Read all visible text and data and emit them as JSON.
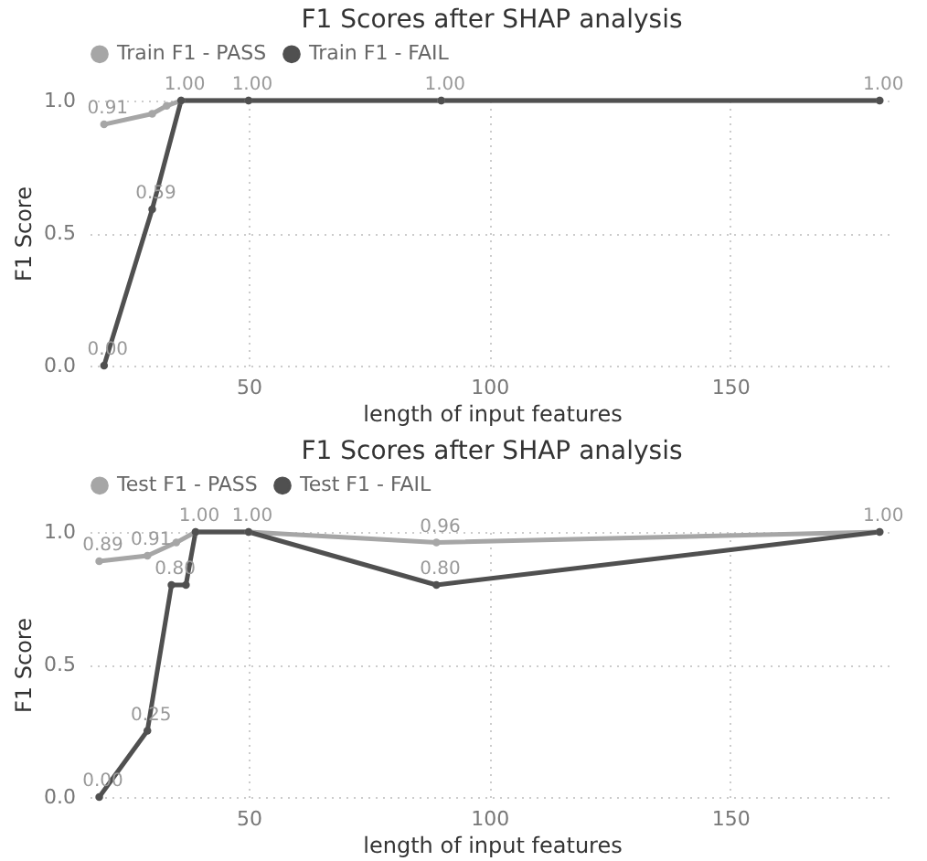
{
  "chart_data": [
    {
      "type": "line",
      "title": "F1 Scores after SHAP analysis",
      "xlabel": "length of input features",
      "ylabel": "F1 Score",
      "xlim": [
        17,
        184
      ],
      "xticks": [
        50,
        100,
        150
      ],
      "ylim": [
        0,
        1
      ],
      "yticks": [
        {
          "value": 0,
          "label": "0.0"
        },
        {
          "value": 0.5,
          "label": "0.5"
        },
        {
          "value": 1,
          "label": "1.0"
        }
      ],
      "grid": true,
      "legend": "top",
      "marker": "circle",
      "series": [
        {
          "name": "Train F1 - PASS",
          "color": "#a6a6a6",
          "x": [
            20,
            30,
            33,
            36,
            50,
            90,
            181
          ],
          "values": [
            0.91,
            0.95,
            0.98,
            1.0,
            1.0,
            1.0,
            1.0
          ],
          "value_labels": [
            "0.91",
            null,
            null,
            "1.00",
            null,
            null,
            null
          ]
        },
        {
          "name": "Train F1 - FAIL",
          "color": "#505050",
          "x": [
            20,
            30,
            36,
            50,
            90,
            181
          ],
          "values": [
            0.0,
            0.59,
            1.0,
            1.0,
            1.0,
            1.0
          ],
          "value_labels": [
            "0.00",
            "0.59",
            null,
            "1.00",
            "1.00",
            "1.00"
          ]
        }
      ]
    },
    {
      "type": "line",
      "title": "F1 Scores after SHAP analysis",
      "xlabel": "length of input features",
      "ylabel": "F1 Score",
      "xlim": [
        17,
        184
      ],
      "xticks": [
        50,
        100,
        150
      ],
      "ylim": [
        0,
        1
      ],
      "yticks": [
        {
          "value": 0,
          "label": "0.0"
        },
        {
          "value": 0.5,
          "label": "0.5"
        },
        {
          "value": 1,
          "label": "1.0"
        }
      ],
      "grid": true,
      "legend": "top",
      "marker": "circle",
      "series": [
        {
          "name": "Test F1 - PASS",
          "color": "#a6a6a6",
          "x": [
            19,
            29,
            35,
            39,
            50,
            89,
            181
          ],
          "values": [
            0.89,
            0.91,
            0.96,
            1.0,
            1.0,
            0.96,
            1.0
          ],
          "value_labels": [
            "0.89",
            "0.91",
            null,
            "1.00",
            "1.00",
            "0.96",
            "1.00"
          ]
        },
        {
          "name": "Test F1 - FAIL",
          "color": "#505050",
          "x": [
            19,
            29,
            34,
            37,
            39,
            50,
            89,
            181
          ],
          "values": [
            0.0,
            0.25,
            0.8,
            0.8,
            1.0,
            1.0,
            0.8,
            1.0
          ],
          "value_labels": [
            "0.00",
            "0.25",
            "0.80",
            null,
            null,
            null,
            "0.80",
            null
          ]
        }
      ]
    }
  ]
}
